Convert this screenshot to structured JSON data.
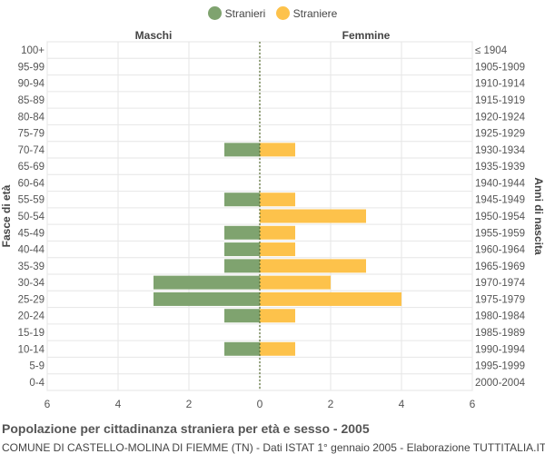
{
  "chart_data": {
    "type": "bar",
    "orientation": "horizontal-pyramid",
    "title": "Popolazione per cittadinanza straniera per età e sesso - 2005",
    "subtitle": "COMUNE DI CASTELLO-MOLINA DI FIEMME (TN) - Dati ISTAT 1° gennaio 2005 - Elaborazione TUTTITALIA.IT",
    "ylabel_left": "Fasce di età",
    "ylabel_right": "Anni di nascita",
    "left_header": "Maschi",
    "right_header": "Femmine",
    "xlim": [
      -6,
      6
    ],
    "xticks": [
      -6,
      -4,
      -2,
      0,
      2,
      4,
      6
    ],
    "xtick_labels": [
      "6",
      "4",
      "2",
      "0",
      "2",
      "4",
      "6"
    ],
    "categories": [
      "100+",
      "95-99",
      "90-94",
      "85-89",
      "80-84",
      "75-79",
      "70-74",
      "65-69",
      "60-64",
      "55-59",
      "50-54",
      "45-49",
      "40-44",
      "35-39",
      "30-34",
      "25-29",
      "20-24",
      "15-19",
      "10-14",
      "5-9",
      "0-4"
    ],
    "birth_years": [
      "≤ 1904",
      "1905-1909",
      "1910-1914",
      "1915-1919",
      "1920-1924",
      "1925-1929",
      "1930-1934",
      "1935-1939",
      "1940-1944",
      "1945-1949",
      "1950-1954",
      "1955-1959",
      "1960-1964",
      "1965-1969",
      "1970-1974",
      "1975-1979",
      "1980-1984",
      "1985-1989",
      "1990-1994",
      "1995-1999",
      "2000-2004"
    ],
    "series": [
      {
        "name": "Stranieri",
        "color": "#7fa36f",
        "values": [
          0,
          0,
          0,
          0,
          0,
          0,
          1,
          0,
          0,
          1,
          0,
          1,
          1,
          1,
          3,
          3,
          1,
          0,
          1,
          0,
          0
        ]
      },
      {
        "name": "Straniere",
        "color": "#fdc24b",
        "values": [
          0,
          0,
          0,
          0,
          0,
          0,
          1,
          0,
          0,
          1,
          3,
          1,
          1,
          3,
          2,
          4,
          1,
          0,
          1,
          0,
          0
        ]
      }
    ],
    "grid": true,
    "legend_position": "top-center"
  }
}
